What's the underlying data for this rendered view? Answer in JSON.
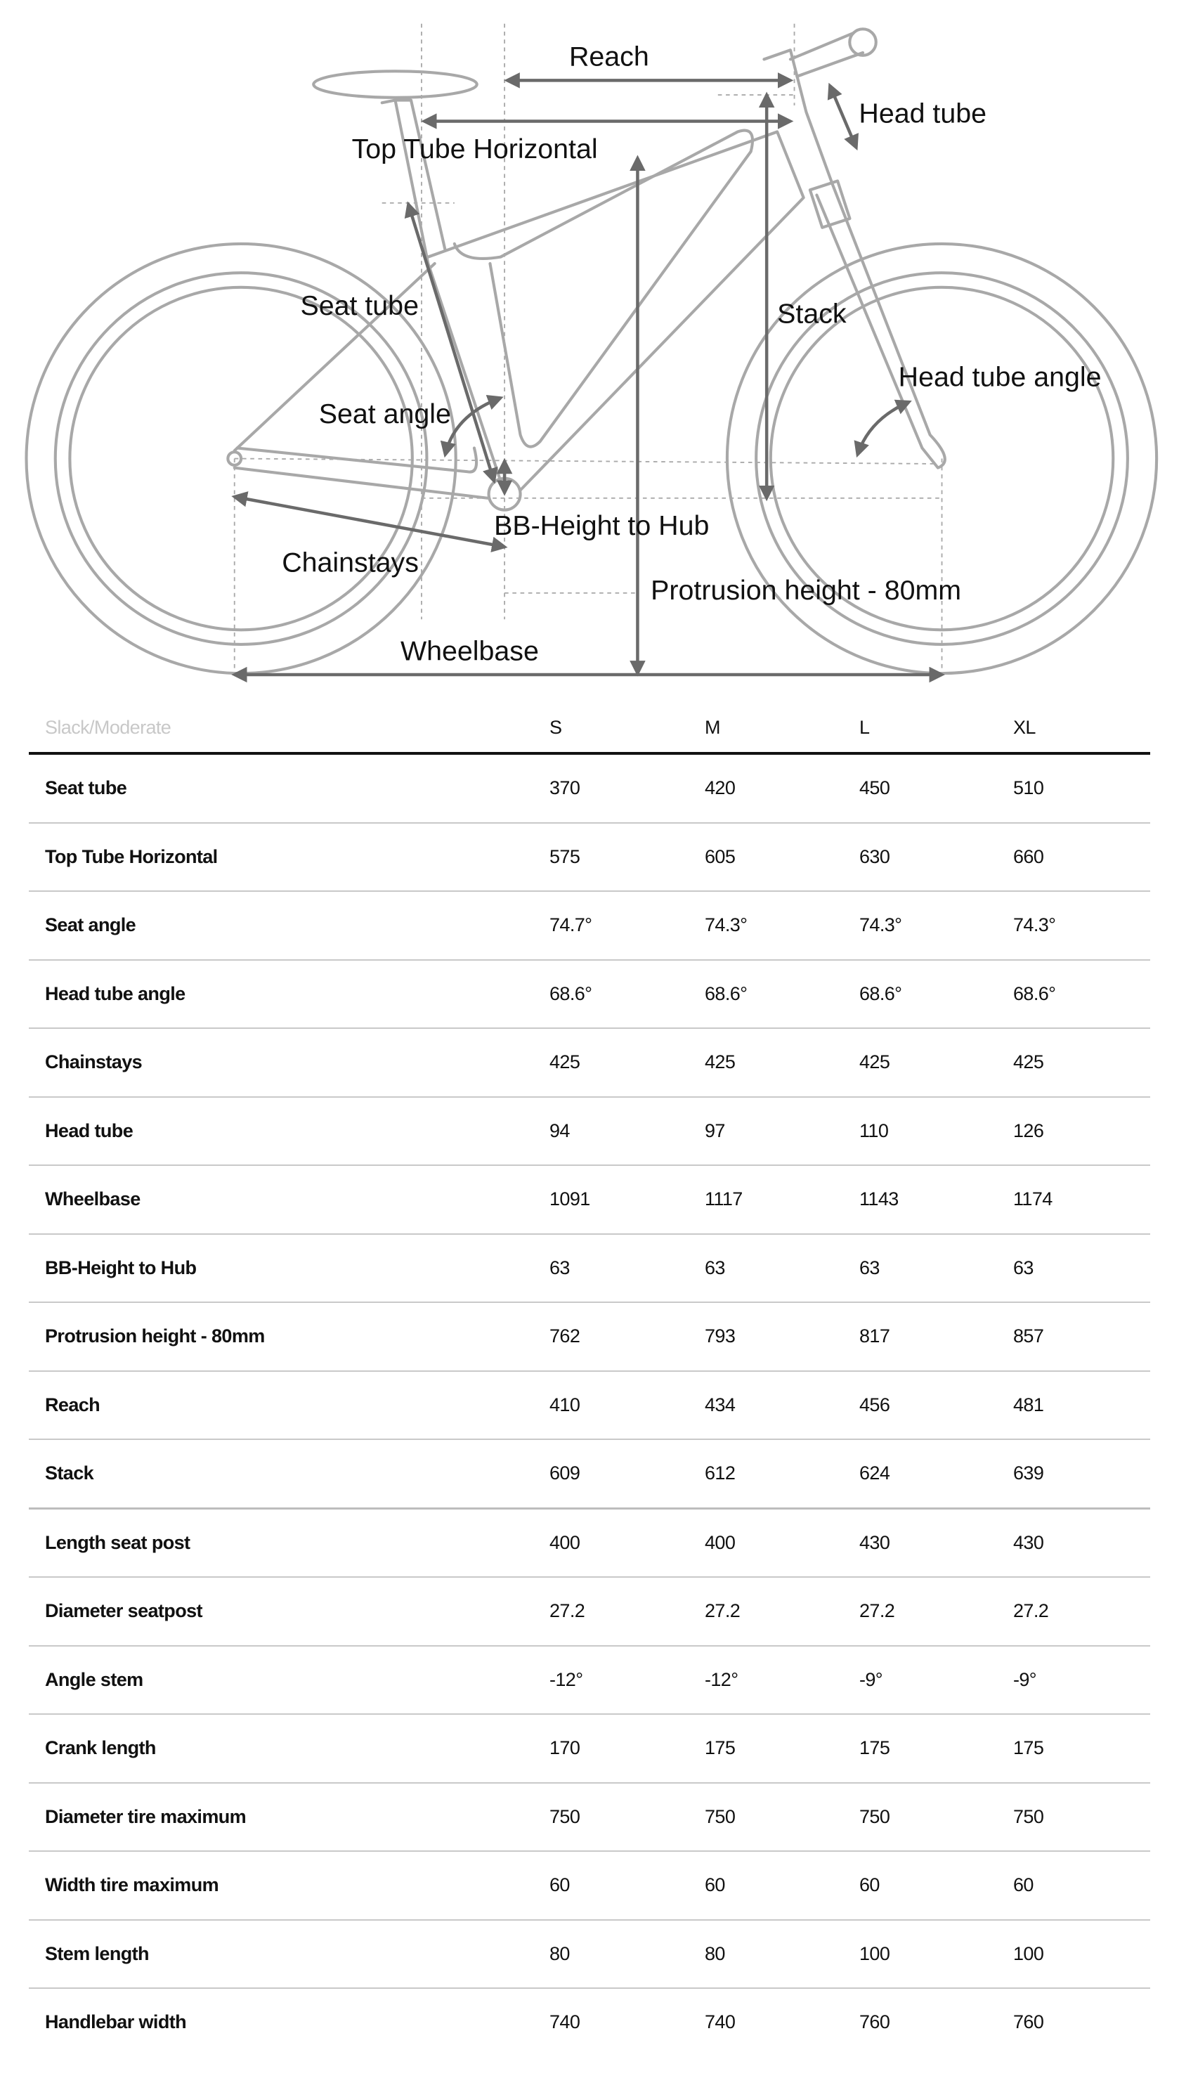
{
  "diagram": {
    "labels": {
      "reach": "Reach",
      "head_tube": "Head tube",
      "top_tube_horizontal": "Top Tube Horizontal",
      "seat_tube": "Seat tube",
      "stack": "Stack",
      "head_tube_angle": "Head tube angle",
      "seat_angle": "Seat angle",
      "bb_height": "BB-Height to Hub",
      "chainstays": "Chainstays",
      "protrusion": "Protrusion height - 80mm",
      "wheelbase": "Wheelbase"
    },
    "colors": {
      "frame": "#a8a8a8",
      "arrows": "#6a6a6a"
    }
  },
  "table": {
    "title": "Slack/Moderate",
    "sizes": [
      "S",
      "M",
      "L",
      "XL"
    ],
    "rows": [
      {
        "label": "Seat tube",
        "values": [
          "370",
          "420",
          "450",
          "510"
        ]
      },
      {
        "label": "Top Tube Horizontal",
        "values": [
          "575",
          "605",
          "630",
          "660"
        ]
      },
      {
        "label": "Seat angle",
        "values": [
          "74.7°",
          "74.3°",
          "74.3°",
          "74.3°"
        ]
      },
      {
        "label": "Head tube angle",
        "values": [
          "68.6°",
          "68.6°",
          "68.6°",
          "68.6°"
        ]
      },
      {
        "label": "Chainstays",
        "values": [
          "425",
          "425",
          "425",
          "425"
        ]
      },
      {
        "label": "Head tube",
        "values": [
          "94",
          "97",
          "110",
          "126"
        ]
      },
      {
        "label": "Wheelbase",
        "values": [
          "1091",
          "1117",
          "1143",
          "1174"
        ]
      },
      {
        "label": "BB-Height to Hub",
        "values": [
          "63",
          "63",
          "63",
          "63"
        ]
      },
      {
        "label": "Protrusion height - 80mm",
        "values": [
          "762",
          "793",
          "817",
          "857"
        ]
      },
      {
        "label": "Reach",
        "values": [
          "410",
          "434",
          "456",
          "481"
        ]
      },
      {
        "label": "Stack",
        "values": [
          "609",
          "612",
          "624",
          "639"
        ]
      },
      {
        "label": "Length seat post",
        "values": [
          "400",
          "400",
          "430",
          "430"
        ]
      },
      {
        "label": "Diameter seatpost",
        "values": [
          "27.2",
          "27.2",
          "27.2",
          "27.2"
        ]
      },
      {
        "label": "Angle stem",
        "values": [
          "-12°",
          "-12°",
          "-9°",
          "-9°"
        ]
      },
      {
        "label": "Crank length",
        "values": [
          "170",
          "175",
          "175",
          "175"
        ]
      },
      {
        "label": "Diameter tire maximum",
        "values": [
          "750",
          "750",
          "750",
          "750"
        ]
      },
      {
        "label": "Width tire maximum",
        "values": [
          "60",
          "60",
          "60",
          "60"
        ]
      },
      {
        "label": "Stem length",
        "values": [
          "80",
          "80",
          "100",
          "100"
        ]
      },
      {
        "label": "Handlebar width",
        "values": [
          "740",
          "740",
          "760",
          "760"
        ]
      }
    ]
  }
}
